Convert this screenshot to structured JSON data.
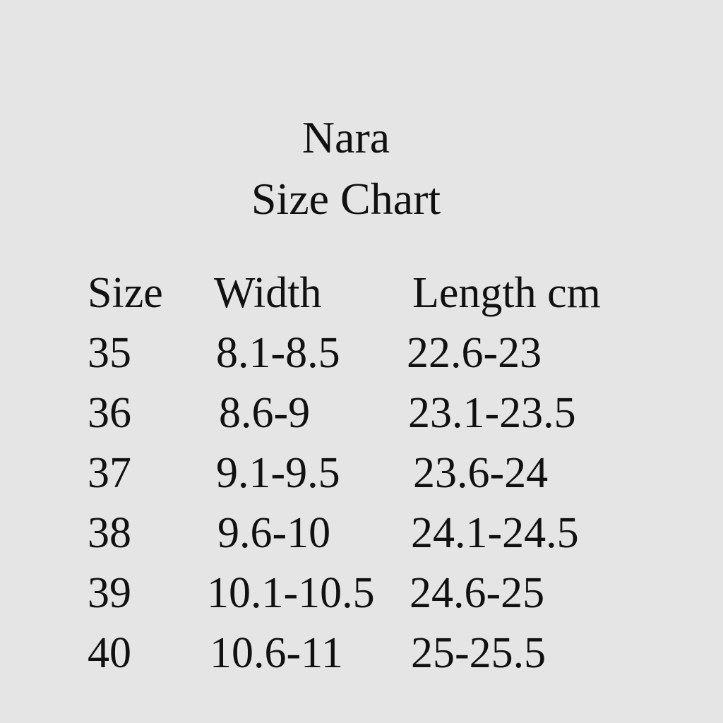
{
  "title": {
    "line1": "Nara",
    "line2": "Size Chart"
  },
  "table": {
    "headers": [
      "Size",
      "Width",
      "Length cm"
    ],
    "rows": [
      [
        "35",
        "8.1-8.5",
        "22.6-23"
      ],
      [
        "36",
        "8.6-9",
        "23.1-23.5"
      ],
      [
        "37",
        "9.1-9.5",
        "23.6-24"
      ],
      [
        "38",
        "9.6-10",
        "24.1-24.5"
      ],
      [
        "39",
        "10.1-10.5",
        "24.6-25"
      ],
      [
        "40",
        "10.6-11",
        "25-25.5"
      ]
    ]
  }
}
